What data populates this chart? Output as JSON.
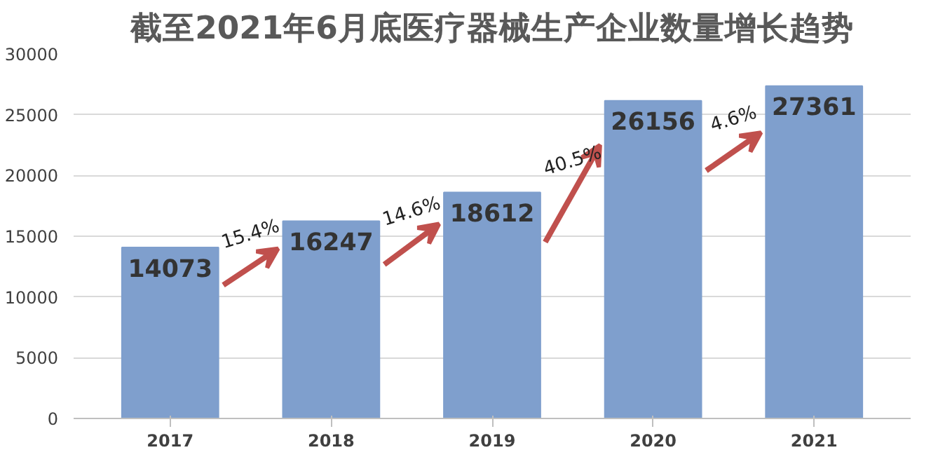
{
  "chart_data": {
    "type": "bar",
    "title": "截至2021年6月底医疗器械生产企业数量增长趋势",
    "categories": [
      "2017",
      "2018",
      "2019",
      "2020",
      "2021"
    ],
    "values": [
      14073,
      16247,
      18612,
      26156,
      27361
    ],
    "color": "#7f9fcd",
    "data_labels": true,
    "ylim": [
      0,
      30000
    ],
    "yticks": [
      0,
      5000,
      10000,
      15000,
      20000,
      25000,
      30000
    ],
    "grid": "y",
    "annotations": [
      "15.4%",
      "14.6%",
      "40.5%",
      "4.6%"
    ]
  }
}
